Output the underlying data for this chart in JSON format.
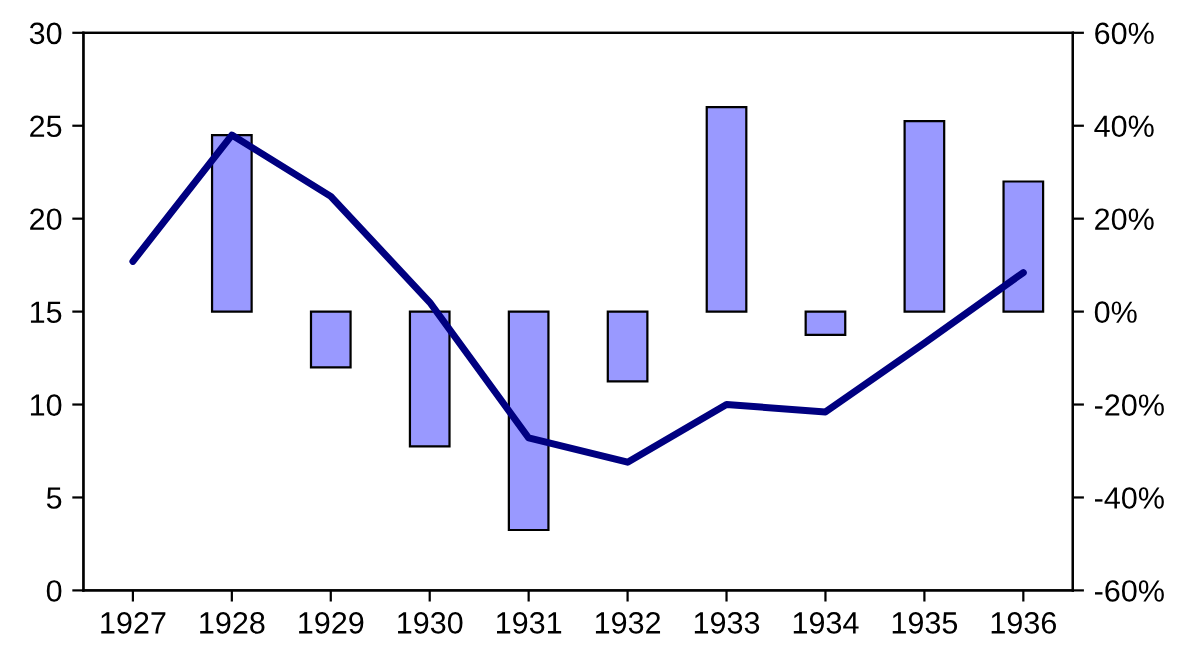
{
  "chart_data": {
    "type": "line",
    "categories": [
      "1927",
      "1928",
      "1929",
      "1930",
      "1931",
      "1932",
      "1933",
      "1934",
      "1935",
      "1936"
    ],
    "series": [
      {
        "type": "bar",
        "axis": "y2",
        "color": "#9999ff",
        "values": [
          null,
          38,
          -12,
          -29,
          -47,
          -15,
          44,
          -5,
          41,
          28
        ]
      },
      {
        "color": "#000080",
        "values": [
          17.7,
          24.5,
          21.2,
          15.5,
          8.2,
          6.9,
          10,
          9.6,
          13.3,
          17.1
        ]
      }
    ],
    "ylim": [
      0,
      30
    ],
    "yticks": [
      0,
      5,
      10,
      15,
      20,
      25,
      30
    ],
    "y2lim": [
      -60,
      60
    ],
    "y2ticks": [
      {
        "value": -60,
        "label": "-60%"
      },
      {
        "value": -40,
        "label": "-40%"
      },
      {
        "value": -20,
        "label": "-20%"
      },
      {
        "value": 0,
        "label": "0%"
      },
      {
        "value": 20,
        "label": "20%"
      },
      {
        "value": 40,
        "label": "40%"
      },
      {
        "value": 60,
        "label": "60%"
      }
    ],
    "grid": false,
    "legend": false,
    "marker": "none",
    "line_style": "solid"
  }
}
